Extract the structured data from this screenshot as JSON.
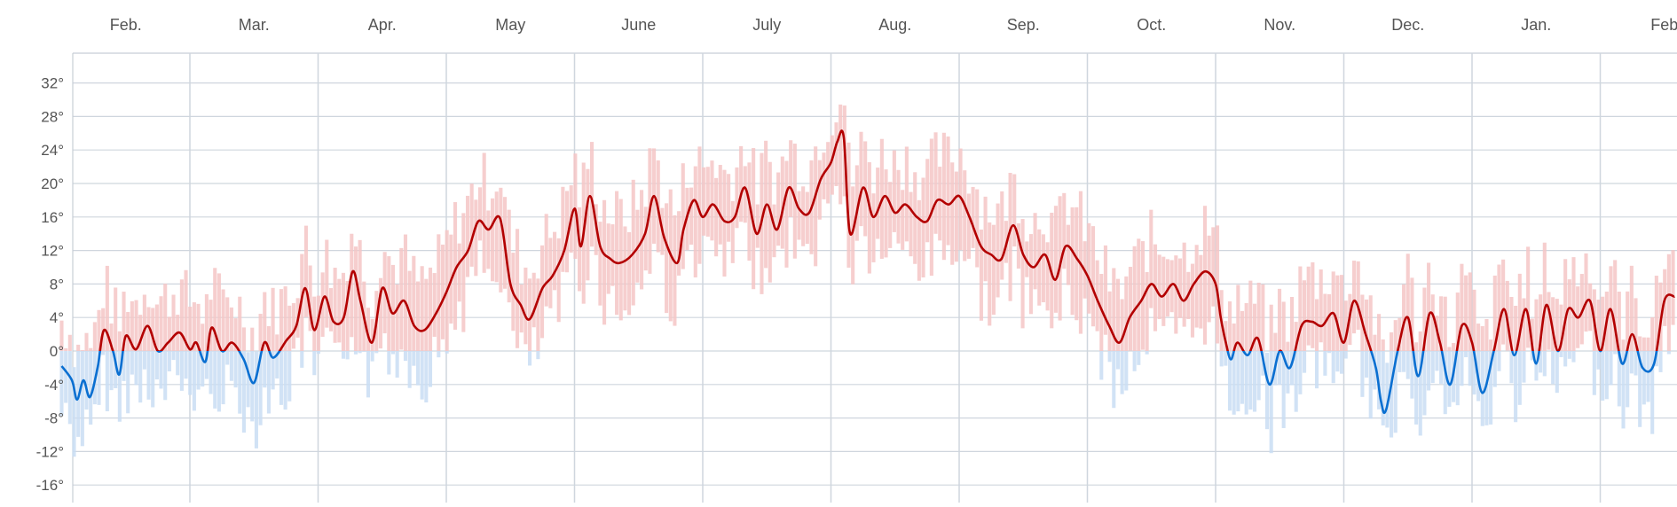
{
  "chart_data": {
    "type": "line",
    "title": "",
    "xlabel": "",
    "ylabel": "",
    "x_tick_labels": [
      "Feb.",
      "Mar.",
      "Apr.",
      "May",
      "June",
      "July",
      "Aug.",
      "Sep.",
      "Oct.",
      "Nov.",
      "Dec.",
      "Jan.",
      "Feb"
    ],
    "y_tick_labels": [
      "32°",
      "28°",
      "24°",
      "20°",
      "16°",
      "12°",
      "8°",
      "4°",
      "0°",
      "-4°",
      "-8°",
      "-12°",
      "-16°"
    ],
    "y_ticks": [
      32,
      28,
      24,
      20,
      16,
      12,
      8,
      4,
      0,
      -4,
      -8,
      -12,
      -16
    ],
    "ylim": [
      -16,
      32
    ],
    "xlim": [
      0,
      12.6
    ],
    "grid": true,
    "unit": "°",
    "colors": {
      "line_above_zero": "#b30000",
      "line_below_zero": "#0a6fd1",
      "bar_above_zero": "#f5c6c6",
      "bar_below_zero": "#c9ddf3",
      "grid": "#cfd6de",
      "frame": "#c7ced6",
      "tick_label": "#555555"
    },
    "series": [
      {
        "type": "line",
        "x_unit": "months",
        "points": [
          [
            0.0,
            -1.8
          ],
          [
            0.08,
            -3.5
          ],
          [
            0.12,
            -5.8
          ],
          [
            0.17,
            -3.5
          ],
          [
            0.22,
            -5.5
          ],
          [
            0.28,
            -2.0
          ],
          [
            0.33,
            2.5
          ],
          [
            0.4,
            0.0
          ],
          [
            0.45,
            -2.8
          ],
          [
            0.5,
            1.8
          ],
          [
            0.58,
            0.2
          ],
          [
            0.67,
            3.0
          ],
          [
            0.75,
            0.0
          ],
          [
            0.83,
            1.0
          ],
          [
            0.92,
            2.2
          ],
          [
            1.0,
            0.2
          ],
          [
            1.05,
            1.0
          ],
          [
            1.12,
            -1.3
          ],
          [
            1.17,
            2.8
          ],
          [
            1.25,
            0.0
          ],
          [
            1.33,
            1.0
          ],
          [
            1.42,
            -1.0
          ],
          [
            1.5,
            -3.8
          ],
          [
            1.58,
            1.0
          ],
          [
            1.65,
            -0.8
          ],
          [
            1.75,
            1.2
          ],
          [
            1.83,
            3.0
          ],
          [
            1.9,
            7.5
          ],
          [
            1.97,
            2.5
          ],
          [
            2.05,
            6.5
          ],
          [
            2.12,
            3.5
          ],
          [
            2.2,
            4.0
          ],
          [
            2.27,
            9.5
          ],
          [
            2.33,
            6.0
          ],
          [
            2.42,
            1.0
          ],
          [
            2.5,
            7.5
          ],
          [
            2.58,
            4.5
          ],
          [
            2.67,
            6.0
          ],
          [
            2.75,
            3.0
          ],
          [
            2.83,
            2.5
          ],
          [
            2.92,
            4.5
          ],
          [
            3.0,
            7.0
          ],
          [
            3.08,
            10.0
          ],
          [
            3.17,
            12.0
          ],
          [
            3.25,
            15.5
          ],
          [
            3.33,
            14.5
          ],
          [
            3.42,
            15.8
          ],
          [
            3.5,
            8.0
          ],
          [
            3.58,
            5.5
          ],
          [
            3.65,
            3.8
          ],
          [
            3.75,
            7.5
          ],
          [
            3.83,
            9.0
          ],
          [
            3.92,
            12.0
          ],
          [
            4.0,
            17.0
          ],
          [
            4.05,
            12.5
          ],
          [
            4.12,
            18.5
          ],
          [
            4.2,
            12.5
          ],
          [
            4.28,
            11.0
          ],
          [
            4.35,
            10.5
          ],
          [
            4.45,
            11.5
          ],
          [
            4.55,
            14.0
          ],
          [
            4.62,
            18.5
          ],
          [
            4.7,
            13.5
          ],
          [
            4.8,
            10.5
          ],
          [
            4.85,
            14.5
          ],
          [
            4.93,
            18.0
          ],
          [
            5.0,
            16.0
          ],
          [
            5.08,
            17.5
          ],
          [
            5.17,
            15.5
          ],
          [
            5.25,
            16.0
          ],
          [
            5.33,
            19.5
          ],
          [
            5.42,
            14.0
          ],
          [
            5.5,
            17.5
          ],
          [
            5.58,
            14.5
          ],
          [
            5.67,
            19.5
          ],
          [
            5.75,
            17.0
          ],
          [
            5.83,
            16.5
          ],
          [
            5.92,
            20.5
          ],
          [
            6.0,
            22.5
          ],
          [
            6.05,
            25.0
          ],
          [
            6.1,
            25.5
          ],
          [
            6.15,
            14.0
          ],
          [
            6.25,
            19.5
          ],
          [
            6.33,
            16.0
          ],
          [
            6.42,
            18.5
          ],
          [
            6.5,
            16.5
          ],
          [
            6.58,
            17.5
          ],
          [
            6.67,
            16.0
          ],
          [
            6.75,
            15.5
          ],
          [
            6.83,
            18.0
          ],
          [
            6.92,
            17.5
          ],
          [
            7.0,
            18.5
          ],
          [
            7.08,
            16.0
          ],
          [
            7.17,
            12.5
          ],
          [
            7.25,
            11.5
          ],
          [
            7.33,
            11.0
          ],
          [
            7.42,
            15.0
          ],
          [
            7.5,
            11.5
          ],
          [
            7.58,
            10.0
          ],
          [
            7.67,
            11.5
          ],
          [
            7.75,
            8.5
          ],
          [
            7.83,
            12.5
          ],
          [
            7.92,
            11.0
          ],
          [
            8.0,
            9.0
          ],
          [
            8.08,
            6.0
          ],
          [
            8.17,
            3.0
          ],
          [
            8.25,
            1.0
          ],
          [
            8.33,
            4.0
          ],
          [
            8.42,
            6.0
          ],
          [
            8.5,
            8.0
          ],
          [
            8.58,
            6.5
          ],
          [
            8.67,
            8.0
          ],
          [
            8.75,
            6.0
          ],
          [
            8.83,
            8.0
          ],
          [
            8.92,
            9.5
          ],
          [
            9.0,
            8.0
          ],
          [
            9.04,
            4.0
          ],
          [
            9.08,
            1.0
          ],
          [
            9.12,
            -1.0
          ],
          [
            9.17,
            1.0
          ],
          [
            9.25,
            -0.5
          ],
          [
            9.33,
            1.5
          ],
          [
            9.42,
            -4.0
          ],
          [
            9.5,
            0.0
          ],
          [
            9.58,
            -2.0
          ],
          [
            9.67,
            3.0
          ],
          [
            9.75,
            3.5
          ],
          [
            9.83,
            3.0
          ],
          [
            9.92,
            4.5
          ],
          [
            10.0,
            1.0
          ],
          [
            10.08,
            6.0
          ],
          [
            10.17,
            2.0
          ],
          [
            10.25,
            -2.0
          ],
          [
            10.29,
            -6.0
          ],
          [
            10.33,
            -7.0
          ],
          [
            10.42,
            0.0
          ],
          [
            10.5,
            4.0
          ],
          [
            10.58,
            -3.0
          ],
          [
            10.67,
            4.5
          ],
          [
            10.75,
            1.0
          ],
          [
            10.83,
            -4.0
          ],
          [
            10.92,
            3.0
          ],
          [
            11.0,
            1.0
          ],
          [
            11.08,
            -5.0
          ],
          [
            11.17,
            0.0
          ],
          [
            11.25,
            5.0
          ],
          [
            11.33,
            -0.5
          ],
          [
            11.42,
            5.0
          ],
          [
            11.5,
            -1.5
          ],
          [
            11.58,
            5.5
          ],
          [
            11.67,
            0.0
          ],
          [
            11.75,
            5.0
          ],
          [
            11.83,
            4.0
          ],
          [
            11.92,
            6.0
          ],
          [
            12.0,
            0.0
          ],
          [
            12.08,
            5.0
          ],
          [
            12.17,
            -1.5
          ],
          [
            12.25,
            2.0
          ],
          [
            12.33,
            -2.0
          ],
          [
            12.42,
            -1.5
          ],
          [
            12.5,
            6.0
          ],
          [
            12.58,
            6.5
          ]
        ]
      }
    ]
  }
}
